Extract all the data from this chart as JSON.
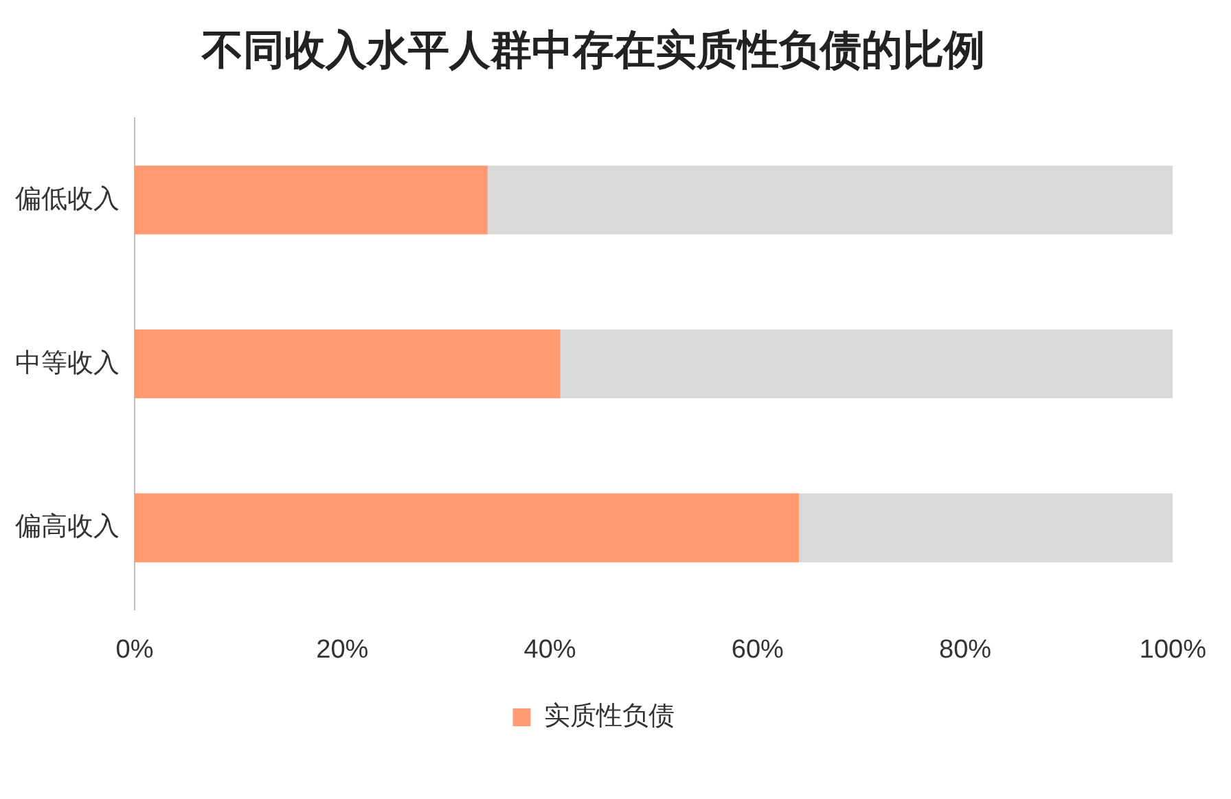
{
  "chart_data": {
    "type": "bar",
    "orientation": "horizontal",
    "stacked": true,
    "title": "不同收入水平人群中存在实质性负债的比例",
    "categories": [
      "偏低收入",
      "中等收入",
      "偏高收入"
    ],
    "series": [
      {
        "name": "实质性负债",
        "color": "#ff9a73",
        "values": [
          34,
          41,
          64
        ]
      },
      {
        "color": "#d9d9d9",
        "values": [
          66,
          59,
          36
        ]
      }
    ],
    "xlim": [
      0,
      100
    ],
    "xticks": [
      {
        "value": 0,
        "label": "0%"
      },
      {
        "value": 20,
        "label": "20%"
      },
      {
        "value": 40,
        "label": "40%"
      },
      {
        "value": 60,
        "label": "60%"
      },
      {
        "value": 80,
        "label": "80%"
      },
      {
        "value": 100,
        "label": "100%"
      }
    ],
    "grid": false,
    "legend": "bottom"
  }
}
